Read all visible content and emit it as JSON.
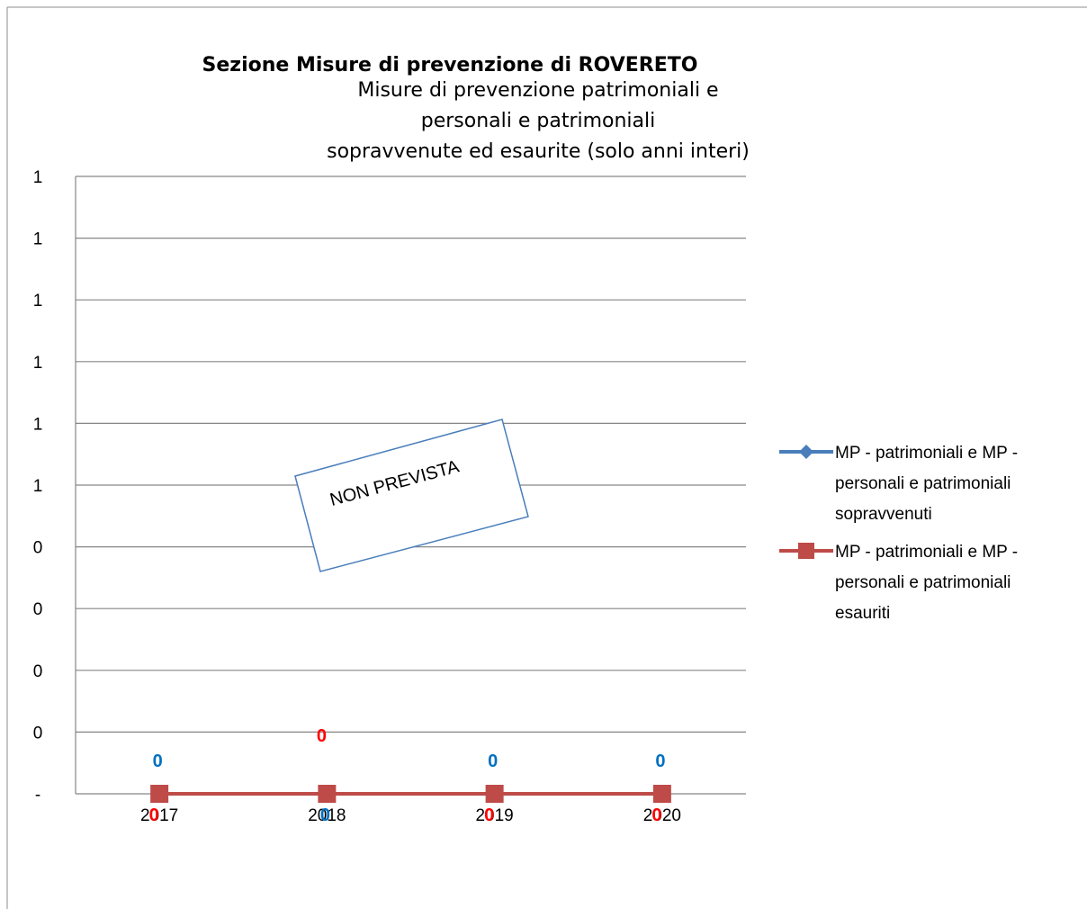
{
  "chart_data": {
    "type": "line",
    "title": "Sezione Misure di prevenzione di ROVERETO",
    "subtitle_lines": [
      "Misure di prevenzione patrimoniali e",
      "personali e patrimoniali",
      "sopravvenute ed esaurite (solo anni interi)"
    ],
    "categories": [
      "2017",
      "2018",
      "2019",
      "2020"
    ],
    "y_tick_labels": [
      "-",
      "0",
      "0",
      "0",
      "0",
      "1",
      "1",
      "1",
      "1",
      "1",
      "1"
    ],
    "ylim": [
      0,
      1
    ],
    "grid": true,
    "legend_position": "right",
    "series": [
      {
        "name_lines": [
          "MP - patrimoniali e MP -",
          "personali e patrimoniali",
          "sopravvenuti"
        ],
        "values": [
          0,
          0,
          0,
          0
        ],
        "data_labels": [
          "0",
          "0",
          "0",
          "0"
        ],
        "label_side": [
          "above",
          "below",
          "above",
          "above"
        ],
        "marker": "diamond",
        "color": "#4A7EBB",
        "label_color": "#0070C0"
      },
      {
        "name_lines": [
          "MP - patrimoniali e MP -",
          "personali e patrimoniali",
          "esauriti"
        ],
        "values": [
          0,
          0,
          0,
          0
        ],
        "data_labels": [
          "0",
          "0",
          "0",
          "0"
        ],
        "label_side": [
          "below",
          "above",
          "below",
          "below"
        ],
        "marker": "square",
        "color": "#BE4B48",
        "label_color": "#FF0000"
      }
    ],
    "annotation": "NON PREVISTA"
  }
}
